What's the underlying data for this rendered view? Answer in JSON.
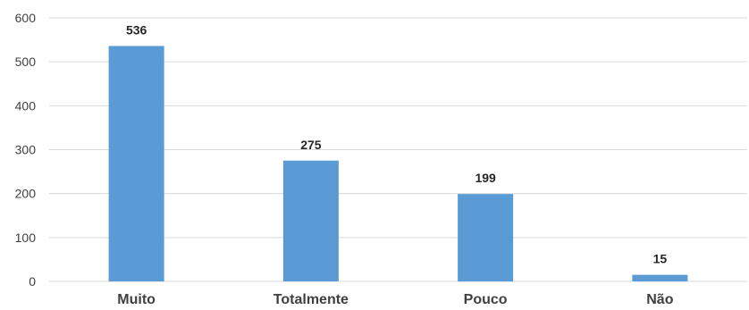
{
  "chart_data": {
    "type": "bar",
    "categories": [
      "Muito",
      "Totalmente",
      "Pouco",
      "Não"
    ],
    "values": [
      536,
      275,
      199,
      15
    ],
    "data_labels": [
      "536",
      "275",
      "199",
      "15"
    ],
    "title": "",
    "xlabel": "",
    "ylabel": "",
    "ylim": [
      0,
      600
    ],
    "yticks": [
      "0",
      "100",
      "200",
      "300",
      "400",
      "500",
      "600"
    ],
    "grid": true,
    "legend": "none",
    "bar_color": "#5b9bd5"
  }
}
